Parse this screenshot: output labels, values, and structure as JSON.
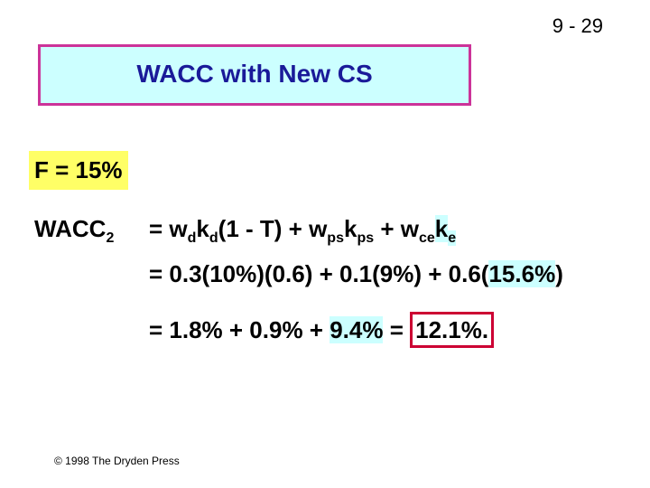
{
  "slide_number": "9 - 29",
  "title": "WACC with New CS",
  "flotation": "F = 15%",
  "lines": [
    {
      "label": [
        {
          "text": "WACC"
        },
        {
          "text": "2",
          "style": "sub"
        }
      ],
      "expr": [
        {
          "text": "= w"
        },
        {
          "text": "d",
          "style": "sub"
        },
        {
          "text": "k"
        },
        {
          "text": "d",
          "style": "sub"
        },
        {
          "text": "(1 - T) + w"
        },
        {
          "text": "ps",
          "style": "sub"
        },
        {
          "text": "k"
        },
        {
          "text": "ps",
          "style": "sub"
        },
        {
          "text": " + w"
        },
        {
          "text": "ce",
          "style": "sub"
        },
        {
          "text": "k",
          "style": "highlight"
        },
        {
          "text": "e",
          "style": "highlight-sub"
        }
      ]
    },
    {
      "expr": [
        {
          "text": "= 0.3(10%)(0.6) + 0.1(9%) + 0.6("
        },
        {
          "text": "15.6%",
          "style": "highlight"
        },
        {
          "text": ")"
        }
      ]
    },
    {
      "expr": [
        {
          "text": "= 1.8% + 0.9% + "
        },
        {
          "text": "9.4%",
          "style": "highlight"
        },
        {
          "text": " = "
        },
        {
          "text": "12.1%.",
          "style": "boxed"
        }
      ]
    }
  ],
  "footer": "© 1998 The Dryden Press"
}
